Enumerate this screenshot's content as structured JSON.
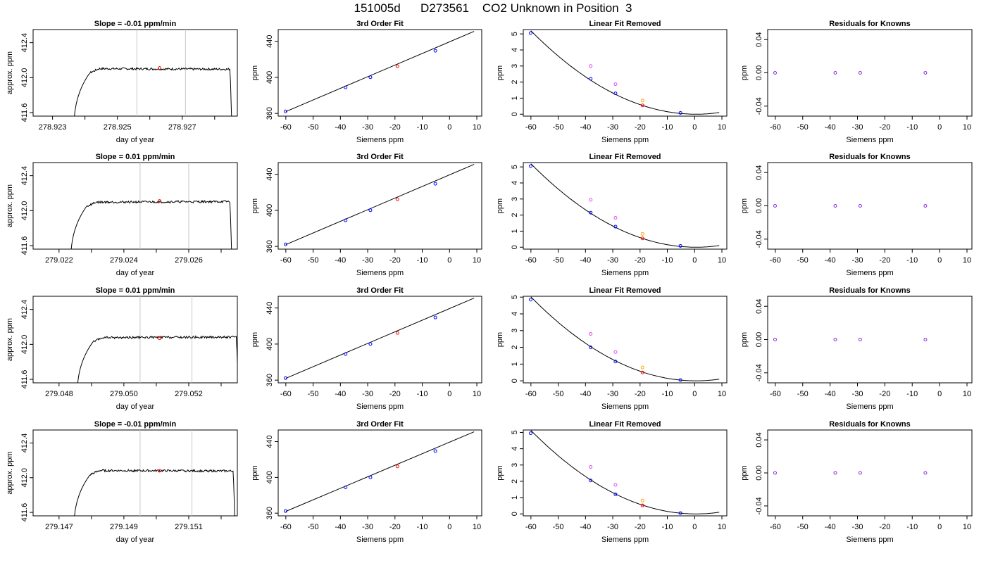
{
  "page": {
    "title": "151005d      D273561    CO2 Unknown in Position  3"
  },
  "colors": {
    "axis": "#000000",
    "trace": "#000000",
    "vline": "#c8c8c8",
    "blue": "#0000ff",
    "red": "#ff0000",
    "magenta": "#e34df0",
    "orange": "#ffa500",
    "purple": "#8a2be2"
  },
  "chart_data": [
    {
      "row": 1,
      "type": "line",
      "title": "Slope =  -0.01  ppm/min",
      "xlabel": "day of year",
      "ylabel": "approx. ppm",
      "xlim": [
        278.9224,
        278.9287
      ],
      "ylim": [
        411.56,
        412.55
      ],
      "xticks": [
        "278.923",
        "",
        "278.925",
        "",
        "278.927",
        ""
      ],
      "xtick_values": [
        278.923,
        278.924,
        278.925,
        278.926,
        278.927,
        278.928
      ],
      "yticks": [
        "411.6",
        "412.0",
        "412.4"
      ],
      "ytick_values": [
        411.6,
        412.0,
        412.4
      ],
      "vlines": [
        278.9256,
        278.9271
      ],
      "marker": {
        "x": 278.9263,
        "y": 412.11,
        "color": "red"
      },
      "trace": {
        "x_start": 278.92365,
        "x_end": 278.92855,
        "plateau": 412.1,
        "slope_per_day": -1.5
      }
    },
    {
      "row": 1,
      "type": "scatter",
      "title": "3rd Order Fit",
      "xlabel": "Siemens ppm",
      "ylabel": "ppm",
      "xlim": [
        -62.8,
        11.8
      ],
      "ylim": [
        357,
        453
      ],
      "xticks": [
        "-60",
        "-50",
        "-40",
        "-30",
        "-20",
        "-10",
        "0",
        "10"
      ],
      "xtick_values": [
        -60,
        -50,
        -40,
        -30,
        -20,
        -10,
        0,
        10
      ],
      "yticks": [
        "360",
        "400",
        "440"
      ],
      "ytick_values": [
        360,
        400,
        440
      ],
      "line": {
        "x": [
          -60,
          9
        ],
        "y": [
          362,
          451
        ]
      },
      "points": [
        {
          "x": -60.1,
          "y": 362.3,
          "color": "blue"
        },
        {
          "x": -38.1,
          "y": 388.9,
          "color": "blue"
        },
        {
          "x": -29.0,
          "y": 400.1,
          "color": "blue"
        },
        {
          "x": -19.1,
          "y": 412.3,
          "color": "red"
        },
        {
          "x": -5.2,
          "y": 429.5,
          "color": "blue"
        }
      ]
    },
    {
      "row": 1,
      "type": "scatter",
      "title": "Linear Fit Removed",
      "xlabel": "Siemens ppm",
      "ylabel": "ppm",
      "xlim": [
        -62.8,
        11.8
      ],
      "ylim": [
        -0.12,
        5.27
      ],
      "xticks": [
        "-60",
        "-50",
        "-40",
        "-30",
        "-20",
        "-10",
        "0",
        "10"
      ],
      "xtick_values": [
        -60,
        -50,
        -40,
        -30,
        -20,
        -10,
        0,
        10
      ],
      "yticks": [
        "0",
        "1",
        "2",
        "3",
        "4",
        "5"
      ],
      "ytick_values": [
        0,
        1,
        2,
        3,
        4,
        5
      ],
      "curve": {
        "a": 0.00142,
        "vertex": 0.5,
        "x_from": -60,
        "x_to": 9
      },
      "points": [
        {
          "x": -60.1,
          "y": 5.05,
          "color": "blue"
        },
        {
          "x": -38.1,
          "y": 2.2,
          "color": "blue"
        },
        {
          "x": -29.0,
          "y": 1.3,
          "color": "blue"
        },
        {
          "x": -19.1,
          "y": 0.55,
          "color": "red"
        },
        {
          "x": -5.2,
          "y": 0.08,
          "color": "blue"
        },
        {
          "x": -38.1,
          "y": 3.0,
          "color": "magenta"
        },
        {
          "x": -29.0,
          "y": 1.87,
          "color": "magenta"
        },
        {
          "x": -19.1,
          "y": 0.85,
          "color": "orange"
        }
      ]
    },
    {
      "row": 1,
      "type": "scatter",
      "title": "Residuals for Knowns",
      "xlabel": "Siemens ppm",
      "ylabel": "ppm",
      "xlim": [
        -62.8,
        11.8
      ],
      "ylim": [
        -0.052,
        0.052
      ],
      "xticks": [
        "-60",
        "-50",
        "-40",
        "-30",
        "-20",
        "-10",
        "0",
        "10"
      ],
      "xtick_values": [
        -60,
        -50,
        -40,
        -30,
        -20,
        -10,
        0,
        10
      ],
      "yticks": [
        "-0.04",
        "0.00",
        "0.04"
      ],
      "ytick_values": [
        -0.04,
        0.0,
        0.04
      ],
      "points": [
        {
          "x": -60.1,
          "y": 0.0,
          "color": "purple"
        },
        {
          "x": -38.1,
          "y": 0.0,
          "color": "purple"
        },
        {
          "x": -29.0,
          "y": 0.0,
          "color": "purple"
        },
        {
          "x": -5.2,
          "y": 0.0,
          "color": "purple"
        }
      ]
    },
    {
      "row": 2,
      "type": "line",
      "title": "Slope =  0.01  ppm/min",
      "xlabel": "day of year",
      "ylabel": "approx. ppm",
      "xlim": [
        279.0212,
        279.0275
      ],
      "ylim": [
        411.56,
        412.55
      ],
      "xticks": [
        "279.022",
        "",
        "279.024",
        "",
        "279.026",
        ""
      ],
      "xtick_values": [
        279.022,
        279.023,
        279.024,
        279.025,
        279.026,
        279.027
      ],
      "yticks": [
        "411.6",
        "412.0",
        "412.4"
      ],
      "ytick_values": [
        411.6,
        412.0,
        412.4
      ],
      "vlines": [
        279.0245,
        279.026
      ],
      "marker": {
        "x": 279.0251,
        "y": 412.11,
        "color": "red"
      },
      "trace": {
        "x_start": 279.02235,
        "x_end": 279.02735,
        "plateau": 412.1,
        "slope_per_day": 1.5
      }
    },
    {
      "row": 2,
      "type": "scatter",
      "title": "3rd Order Fit",
      "xlabel": "Siemens ppm",
      "ylabel": "ppm",
      "xlim": [
        -62.8,
        11.8
      ],
      "ylim": [
        357,
        453
      ],
      "xticks": [
        "-60",
        "-50",
        "-40",
        "-30",
        "-20",
        "-10",
        "0",
        "10"
      ],
      "xtick_values": [
        -60,
        -50,
        -40,
        -30,
        -20,
        -10,
        0,
        10
      ],
      "yticks": [
        "360",
        "400",
        "440"
      ],
      "ytick_values": [
        360,
        400,
        440
      ],
      "line": {
        "x": [
          -60,
          9
        ],
        "y": [
          362,
          451
        ]
      },
      "points": [
        {
          "x": -60.1,
          "y": 362.3,
          "color": "blue"
        },
        {
          "x": -38.1,
          "y": 388.9,
          "color": "blue"
        },
        {
          "x": -29.0,
          "y": 400.1,
          "color": "blue"
        },
        {
          "x": -19.1,
          "y": 412.3,
          "color": "red"
        },
        {
          "x": -5.2,
          "y": 429.5,
          "color": "blue"
        }
      ]
    },
    {
      "row": 2,
      "type": "scatter",
      "title": "Linear Fit Removed",
      "xlabel": "Siemens ppm",
      "ylabel": "ppm",
      "xlim": [
        -62.8,
        11.8
      ],
      "ylim": [
        -0.12,
        5.27
      ],
      "xticks": [
        "-60",
        "-50",
        "-40",
        "-30",
        "-20",
        "-10",
        "0",
        "10"
      ],
      "xtick_values": [
        -60,
        -50,
        -40,
        -30,
        -20,
        -10,
        0,
        10
      ],
      "yticks": [
        "0",
        "1",
        "2",
        "3",
        "4",
        "5"
      ],
      "ytick_values": [
        0,
        1,
        2,
        3,
        4,
        5
      ],
      "curve": {
        "a": 0.00142,
        "vertex": 0.5,
        "x_from": -60,
        "x_to": 9
      },
      "points": [
        {
          "x": -60.1,
          "y": 5.05,
          "color": "blue"
        },
        {
          "x": -38.1,
          "y": 2.15,
          "color": "blue"
        },
        {
          "x": -29.0,
          "y": 1.28,
          "color": "blue"
        },
        {
          "x": -19.1,
          "y": 0.55,
          "color": "red"
        },
        {
          "x": -5.2,
          "y": 0.08,
          "color": "blue"
        },
        {
          "x": -38.1,
          "y": 2.95,
          "color": "magenta"
        },
        {
          "x": -29.0,
          "y": 1.83,
          "color": "magenta"
        },
        {
          "x": -19.1,
          "y": 0.83,
          "color": "orange"
        }
      ]
    },
    {
      "row": 2,
      "type": "scatter",
      "title": "Residuals for Knowns",
      "xlabel": "Siemens ppm",
      "ylabel": "ppm",
      "xlim": [
        -62.8,
        11.8
      ],
      "ylim": [
        -0.052,
        0.052
      ],
      "xticks": [
        "-60",
        "-50",
        "-40",
        "-30",
        "-20",
        "-10",
        "0",
        "10"
      ],
      "xtick_values": [
        -60,
        -50,
        -40,
        -30,
        -20,
        -10,
        0,
        10
      ],
      "yticks": [
        "-0.04",
        "0.00",
        "0.04"
      ],
      "ytick_values": [
        -0.04,
        0.0,
        0.04
      ],
      "points": [
        {
          "x": -60.1,
          "y": 0.0,
          "color": "purple"
        },
        {
          "x": -38.1,
          "y": 0.0,
          "color": "purple"
        },
        {
          "x": -29.0,
          "y": 0.0,
          "color": "purple"
        },
        {
          "x": -5.2,
          "y": 0.0,
          "color": "purple"
        }
      ]
    },
    {
      "row": 3,
      "type": "line",
      "title": "Slope =  0.01  ppm/min",
      "xlabel": "day of year",
      "ylabel": "approx. ppm",
      "xlim": [
        279.0472,
        279.0535
      ],
      "ylim": [
        411.56,
        412.55
      ],
      "xticks": [
        "279.048",
        "",
        "279.050",
        "",
        "279.052",
        ""
      ],
      "xtick_values": [
        279.048,
        279.049,
        279.05,
        279.051,
        279.052,
        279.053
      ],
      "yticks": [
        "411.6",
        "412.0",
        "412.4"
      ],
      "ytick_values": [
        411.6,
        412.0,
        412.4
      ],
      "vlines": [
        279.0505,
        279.0521
      ],
      "marker": {
        "x": 279.0511,
        "y": 412.07,
        "color": "red"
      },
      "trace": {
        "x_start": 279.04855,
        "x_end": 279.05355,
        "plateau": 412.08,
        "slope_per_day": 1.5
      }
    },
    {
      "row": 3,
      "type": "scatter",
      "title": "3rd Order Fit",
      "xlabel": "Siemens ppm",
      "ylabel": "ppm",
      "xlim": [
        -62.8,
        11.8
      ],
      "ylim": [
        357,
        453
      ],
      "xticks": [
        "-60",
        "-50",
        "-40",
        "-30",
        "-20",
        "-10",
        "0",
        "10"
      ],
      "xtick_values": [
        -60,
        -50,
        -40,
        -30,
        -20,
        -10,
        0,
        10
      ],
      "yticks": [
        "360",
        "400",
        "440"
      ],
      "ytick_values": [
        360,
        400,
        440
      ],
      "line": {
        "x": [
          -60,
          9
        ],
        "y": [
          362,
          451
        ]
      },
      "points": [
        {
          "x": -60.1,
          "y": 362.3,
          "color": "blue"
        },
        {
          "x": -38.1,
          "y": 388.9,
          "color": "blue"
        },
        {
          "x": -29.0,
          "y": 400.1,
          "color": "blue"
        },
        {
          "x": -19.1,
          "y": 412.3,
          "color": "red"
        },
        {
          "x": -5.2,
          "y": 429.5,
          "color": "blue"
        }
      ]
    },
    {
      "row": 3,
      "type": "scatter",
      "title": "Linear Fit Removed",
      "xlabel": "Siemens ppm",
      "ylabel": "ppm",
      "xlim": [
        -62.8,
        11.8
      ],
      "ylim": [
        -0.12,
        5.05
      ],
      "xticks": [
        "-60",
        "-50",
        "-40",
        "-30",
        "-20",
        "-10",
        "0",
        "10"
      ],
      "xtick_values": [
        -60,
        -50,
        -40,
        -30,
        -20,
        -10,
        0,
        10
      ],
      "yticks": [
        "0",
        "1",
        "2",
        "3",
        "4",
        "5"
      ],
      "ytick_values": [
        0,
        1,
        2,
        3,
        4,
        5
      ],
      "curve": {
        "a": 0.00137,
        "vertex": 0.5,
        "x_from": -60,
        "x_to": 9
      },
      "points": [
        {
          "x": -60.1,
          "y": 4.85,
          "color": "blue"
        },
        {
          "x": -38.1,
          "y": 2.0,
          "color": "blue"
        },
        {
          "x": -29.0,
          "y": 1.15,
          "color": "blue"
        },
        {
          "x": -19.1,
          "y": 0.5,
          "color": "red"
        },
        {
          "x": -5.2,
          "y": 0.05,
          "color": "blue"
        },
        {
          "x": -38.1,
          "y": 2.8,
          "color": "magenta"
        },
        {
          "x": -29.0,
          "y": 1.72,
          "color": "magenta"
        },
        {
          "x": -19.1,
          "y": 0.8,
          "color": "orange"
        }
      ]
    },
    {
      "row": 3,
      "type": "scatter",
      "title": "Residuals for Knowns",
      "xlabel": "Siemens ppm",
      "ylabel": "ppm",
      "xlim": [
        -62.8,
        11.8
      ],
      "ylim": [
        -0.052,
        0.052
      ],
      "xticks": [
        "-60",
        "-50",
        "-40",
        "-30",
        "-20",
        "-10",
        "0",
        "10"
      ],
      "xtick_values": [
        -60,
        -50,
        -40,
        -30,
        -20,
        -10,
        0,
        10
      ],
      "yticks": [
        "-0.04",
        "0.00",
        "0.04"
      ],
      "ytick_values": [
        -0.04,
        0.0,
        0.04
      ],
      "points": [
        {
          "x": -60.1,
          "y": 0.0,
          "color": "purple"
        },
        {
          "x": -38.1,
          "y": 0.0,
          "color": "purple"
        },
        {
          "x": -29.0,
          "y": 0.0,
          "color": "purple"
        },
        {
          "x": -5.2,
          "y": 0.0,
          "color": "purple"
        }
      ]
    },
    {
      "row": 4,
      "type": "line",
      "title": "Slope =  -0.01  ppm/min",
      "xlabel": "day of year",
      "ylabel": "approx. ppm",
      "xlim": [
        279.1462,
        279.1525
      ],
      "ylim": [
        411.56,
        412.55
      ],
      "xticks": [
        "279.147",
        "",
        "279.149",
        "",
        "279.151",
        ""
      ],
      "xtick_values": [
        279.147,
        279.148,
        279.149,
        279.15,
        279.151,
        279.152
      ],
      "yticks": [
        "411.6",
        "412.0",
        "412.4"
      ],
      "ytick_values": [
        411.6,
        412.0,
        412.4
      ],
      "vlines": [
        279.1495,
        279.1511
      ],
      "marker": {
        "x": 279.1501,
        "y": 412.08,
        "color": "red"
      },
      "trace": {
        "x_start": 279.14745,
        "x_end": 279.15245,
        "plateau": 412.08,
        "slope_per_day": -1.5
      }
    },
    {
      "row": 4,
      "type": "scatter",
      "title": "3rd Order Fit",
      "xlabel": "Siemens ppm",
      "ylabel": "ppm",
      "xlim": [
        -62.8,
        11.8
      ],
      "ylim": [
        357,
        453
      ],
      "xticks": [
        "-60",
        "-50",
        "-40",
        "-30",
        "-20",
        "-10",
        "0",
        "10"
      ],
      "xtick_values": [
        -60,
        -50,
        -40,
        -30,
        -20,
        -10,
        0,
        10
      ],
      "yticks": [
        "360",
        "400",
        "440"
      ],
      "ytick_values": [
        360,
        400,
        440
      ],
      "line": {
        "x": [
          -60,
          9
        ],
        "y": [
          362,
          451
        ]
      },
      "points": [
        {
          "x": -60.1,
          "y": 362.3,
          "color": "blue"
        },
        {
          "x": -38.1,
          "y": 388.9,
          "color": "blue"
        },
        {
          "x": -29.0,
          "y": 400.1,
          "color": "blue"
        },
        {
          "x": -19.1,
          "y": 412.3,
          "color": "red"
        },
        {
          "x": -5.2,
          "y": 429.5,
          "color": "blue"
        }
      ]
    },
    {
      "row": 4,
      "type": "scatter",
      "title": "Linear Fit Removed",
      "xlabel": "Siemens ppm",
      "ylabel": "ppm",
      "xlim": [
        -62.8,
        11.8
      ],
      "ylim": [
        -0.12,
        5.15
      ],
      "xticks": [
        "-60",
        "-50",
        "-40",
        "-30",
        "-20",
        "-10",
        "0",
        "10"
      ],
      "xtick_values": [
        -60,
        -50,
        -40,
        -30,
        -20,
        -10,
        0,
        10
      ],
      "yticks": [
        "0",
        "1",
        "2",
        "3",
        "4",
        "5"
      ],
      "ytick_values": [
        0,
        1,
        2,
        3,
        4,
        5
      ],
      "curve": {
        "a": 0.0014,
        "vertex": 0.5,
        "x_from": -60,
        "x_to": 9
      },
      "points": [
        {
          "x": -60.1,
          "y": 4.95,
          "color": "blue"
        },
        {
          "x": -38.1,
          "y": 2.05,
          "color": "blue"
        },
        {
          "x": -29.0,
          "y": 1.2,
          "color": "blue"
        },
        {
          "x": -19.1,
          "y": 0.52,
          "color": "red"
        },
        {
          "x": -5.2,
          "y": 0.05,
          "color": "blue"
        },
        {
          "x": -38.1,
          "y": 2.88,
          "color": "magenta"
        },
        {
          "x": -29.0,
          "y": 1.78,
          "color": "magenta"
        },
        {
          "x": -19.1,
          "y": 0.82,
          "color": "orange"
        }
      ]
    },
    {
      "row": 4,
      "type": "scatter",
      "title": "Residuals for Knowns",
      "xlabel": "Siemens ppm",
      "ylabel": "ppm",
      "xlim": [
        -62.8,
        11.8
      ],
      "ylim": [
        -0.052,
        0.052
      ],
      "xticks": [
        "-60",
        "-50",
        "-40",
        "-30",
        "-20",
        "-10",
        "0",
        "10"
      ],
      "xtick_values": [
        -60,
        -50,
        -40,
        -30,
        -20,
        -10,
        0,
        10
      ],
      "yticks": [
        "-0.04",
        "0.00",
        "0.04"
      ],
      "ytick_values": [
        -0.04,
        0.0,
        0.04
      ],
      "points": [
        {
          "x": -60.1,
          "y": 0.0,
          "color": "purple"
        },
        {
          "x": -38.1,
          "y": 0.0,
          "color": "purple"
        },
        {
          "x": -29.0,
          "y": 0.0,
          "color": "purple"
        },
        {
          "x": -5.2,
          "y": 0.0,
          "color": "purple"
        }
      ]
    }
  ]
}
